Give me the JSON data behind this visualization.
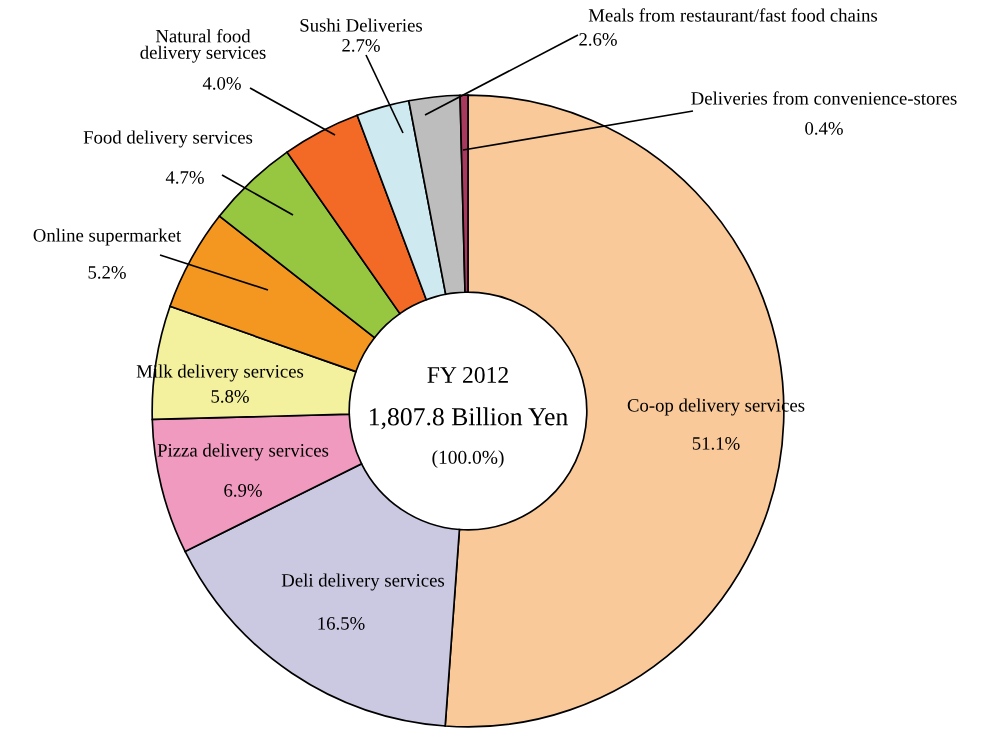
{
  "chart_data": {
    "type": "donut",
    "categories": [
      "Co-op delivery services",
      "Deli delivery services",
      "Pizza delivery services",
      "Milk delivery services",
      "Online supermarket",
      "Food delivery services",
      "Natural food\ndelivery services",
      "Sushi Deliveries",
      "Meals from restaurant/fast food chains",
      "Deliveries from convenience-stores"
    ],
    "values": [
      51.1,
      16.5,
      6.9,
      5.8,
      5.2,
      4.7,
      4.0,
      2.7,
      2.6,
      0.4
    ],
    "colors": [
      "#f9c99a",
      "#cbc8e2",
      "#f09ac0",
      "#f3f09e",
      "#f39720",
      "#97c640",
      "#f26a26",
      "#cfe9f0",
      "#bdbdbd",
      "#a83a5e"
    ],
    "value_labels": [
      "51.1%",
      "16.5%",
      "6.9%",
      "5.8%",
      "5.2%",
      "4.7%",
      "4.0%",
      "2.7%",
      "2.6%",
      "0.4%"
    ],
    "annotations": [
      "FY 2012",
      "1,807.8 Billion Yen",
      "(100.0%)"
    ]
  }
}
